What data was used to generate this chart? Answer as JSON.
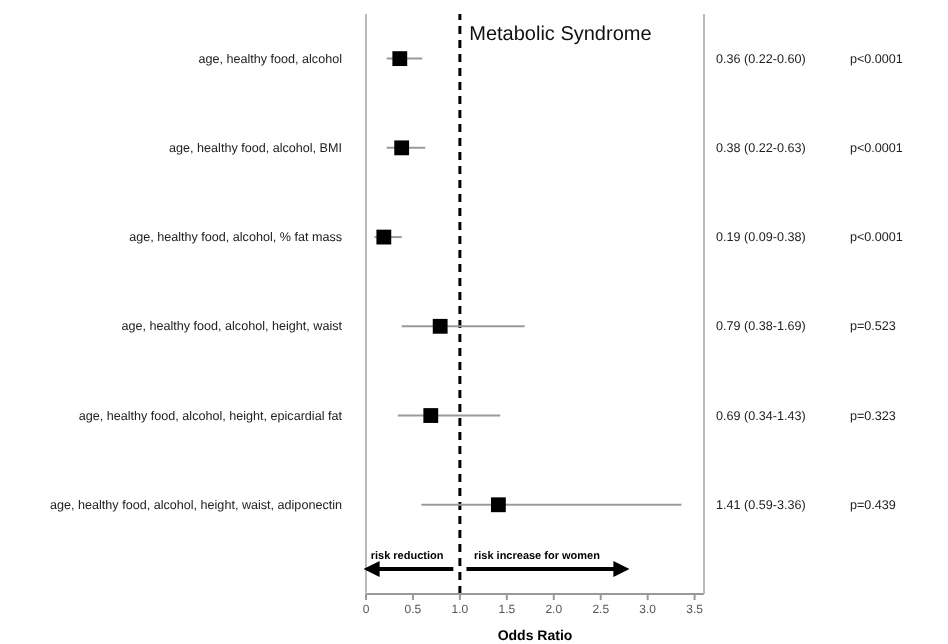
{
  "chart_data": {
    "type": "scatter",
    "orientation": "horizontal",
    "title": "Metabolic Syndrome",
    "xlabel": "Odds Ratio",
    "categories": [
      "age, healthy food, alcohol",
      "age, healthy food, alcohol, BMI",
      "age, healthy food, alcohol, % fat mass",
      "age, healthy food, alcohol, height, waist",
      "age, healthy food, alcohol, height, epicardial fat",
      "age, healthy food, alcohol, height, waist, adiponectin"
    ],
    "values": [
      0.36,
      0.38,
      0.19,
      0.79,
      0.69,
      1.41
    ],
    "errors": [
      [
        0.22,
        0.6
      ],
      [
        0.22,
        0.63
      ],
      [
        0.09,
        0.38
      ],
      [
        0.38,
        1.69
      ],
      [
        0.34,
        1.43
      ],
      [
        0.59,
        3.36
      ]
    ],
    "value_labels": [
      "0.36 (0.22-0.60)",
      "0.38 (0.22-0.63)",
      "0.19 (0.09-0.38)",
      "0.79 (0.38-1.69)",
      "0.69 (0.34-1.43)",
      "1.41 (0.59-3.36)"
    ],
    "color": "#000000",
    "marker": "square",
    "grid": false,
    "legend": false,
    "xlim": [
      0,
      3.6
    ],
    "xticks": [
      0,
      {
        "value": 0.5,
        "label": "0.5"
      },
      {
        "value": 1,
        "label": "1.0"
      },
      {
        "value": 1.5,
        "label": "1.5"
      },
      {
        "value": 2,
        "label": "2.0"
      },
      {
        "value": 2.5,
        "label": "2.5"
      },
      {
        "value": 3,
        "label": "3.0"
      },
      {
        "value": 3.5,
        "label": "3.5"
      }
    ],
    "ref_lines": [
      {
        "axis": "x",
        "value": 1,
        "color": "#000000",
        "line_style": "dashed"
      }
    ],
    "annotations": [
      "p<0.0001",
      "p<0.0001",
      "p<0.0001",
      "p=0.523",
      "p=0.323",
      "p=0.439",
      "risk reduction",
      "risk increase for women"
    ]
  }
}
